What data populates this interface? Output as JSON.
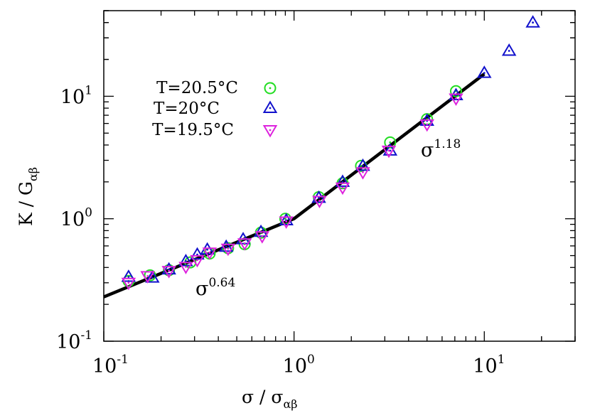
{
  "chart_data": {
    "type": "scatter",
    "scale": "log-log",
    "xlabel": {
      "main": "σ / σ",
      "sub": "αβ"
    },
    "ylabel": {
      "main": "K / G",
      "sub": "αβ"
    },
    "xlim": [
      0.1,
      30
    ],
    "ylim": [
      0.1,
      50
    ],
    "x_ticks": [
      {
        "value": 0.1,
        "base": "10",
        "exp": "-1"
      },
      {
        "value": 1,
        "base": "10",
        "exp": "0"
      },
      {
        "value": 10,
        "base": "10",
        "exp": "1"
      }
    ],
    "y_ticks": [
      {
        "value": 0.1,
        "base": "10",
        "exp": "-1"
      },
      {
        "value": 1,
        "base": "10",
        "exp": "0"
      },
      {
        "value": 10,
        "base": "10",
        "exp": "1"
      }
    ],
    "series": [
      {
        "name": "T=20.5°C",
        "marker": "circle",
        "color": "#22dd22",
        "x": [
          0.135,
          0.175,
          0.22,
          0.285,
          0.36,
          0.45,
          0.55,
          0.67,
          0.9,
          1.35,
          1.8,
          2.25,
          3.2,
          5.0,
          7.1
        ],
        "y": [
          0.31,
          0.345,
          0.38,
          0.44,
          0.52,
          0.575,
          0.62,
          0.77,
          1.0,
          1.5,
          1.95,
          2.7,
          4.2,
          6.5,
          11.0
        ]
      },
      {
        "name": "T=20°C",
        "marker": "triangle-up",
        "color": "#1111cc",
        "x": [
          0.135,
          0.18,
          0.22,
          0.27,
          0.31,
          0.35,
          0.44,
          0.54,
          0.67,
          0.91,
          1.35,
          1.8,
          2.3,
          3.2,
          5.0,
          7.1,
          10.0,
          13.5,
          18.0
        ],
        "y": [
          0.335,
          0.33,
          0.385,
          0.45,
          0.51,
          0.56,
          0.59,
          0.68,
          0.78,
          0.97,
          1.48,
          2.0,
          2.7,
          3.6,
          6.3,
          10.2,
          15.5,
          23.5,
          40.0
        ]
      },
      {
        "name": "T=19.5°C",
        "marker": "triangle-down",
        "color": "#dd22dd",
        "x": [
          0.135,
          0.17,
          0.22,
          0.27,
          0.31,
          0.36,
          0.45,
          0.55,
          0.68,
          0.91,
          1.36,
          1.8,
          2.3,
          3.15,
          5.0,
          7.1
        ],
        "y": [
          0.3,
          0.34,
          0.375,
          0.405,
          0.46,
          0.53,
          0.57,
          0.63,
          0.72,
          0.95,
          1.4,
          1.8,
          2.4,
          3.6,
          5.9,
          9.6
        ]
      }
    ],
    "fit_line": {
      "color": "#000000",
      "points": [
        [
          0.1,
          0.23
        ],
        [
          1.0,
          1.0
        ],
        [
          10.0,
          15.2
        ]
      ]
    },
    "annotations": [
      {
        "base": "σ",
        "exp": "0.64",
        "x": 0.27,
        "y": 0.26
      },
      {
        "base": "σ",
        "exp": "1.18",
        "x": 3.4,
        "y": 2.9
      }
    ],
    "legend_position": "upper-left"
  }
}
